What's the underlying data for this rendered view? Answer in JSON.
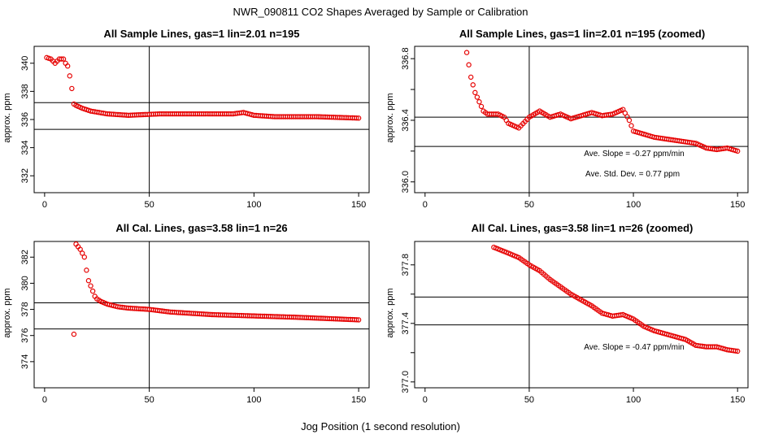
{
  "main_title": "NWR_090811  CO2 Shapes Averaged by Sample or Calibration",
  "x_label": "Jog Position (1 second resolution)",
  "colors": {
    "points": "#e60000",
    "lines": "#000000"
  },
  "chart_data": [
    {
      "type": "scatter",
      "title": "All Sample Lines, gas=1 lin=2.01 n=195",
      "ylabel": "approx. ppm",
      "xlim": [
        -5,
        155
      ],
      "ylim": [
        330.8,
        341.2
      ],
      "xticks": [
        0,
        50,
        100,
        150
      ],
      "yticks": [
        332,
        334,
        336,
        338,
        340
      ],
      "vline": 50,
      "hlines": [
        337.2,
        335.3
      ],
      "annotations": [],
      "series": {
        "kind": "curve",
        "x_start": 1,
        "x_end": 150,
        "knots": [
          [
            1,
            340.4
          ],
          [
            3,
            340.3
          ],
          [
            5,
            340.0
          ],
          [
            7,
            340.3
          ],
          [
            9,
            340.3
          ],
          [
            10,
            340.0
          ],
          [
            11,
            339.8
          ],
          [
            12,
            339.1
          ],
          [
            13,
            338.2
          ],
          [
            14,
            337.1
          ],
          [
            15,
            337.0
          ],
          [
            18,
            336.8
          ],
          [
            22,
            336.6
          ],
          [
            30,
            336.4
          ],
          [
            40,
            336.3
          ],
          [
            55,
            336.4
          ],
          [
            70,
            336.4
          ],
          [
            90,
            336.4
          ],
          [
            95,
            336.5
          ],
          [
            100,
            336.3
          ],
          [
            110,
            336.2
          ],
          [
            130,
            336.2
          ],
          [
            150,
            336.1
          ]
        ]
      }
    },
    {
      "type": "scatter",
      "title": "All Sample Lines, gas=1 lin=2.01 n=195 (zoomed)",
      "ylabel": "approx. ppm",
      "xlim": [
        -5,
        155
      ],
      "ylim": [
        335.93,
        336.88
      ],
      "xticks": [
        0,
        50,
        100,
        150
      ],
      "yticks": [
        336.0,
        336.2,
        336.4,
        336.6,
        336.8
      ],
      "ytick_labels": [
        "336.0",
        "",
        "336.4",
        "",
        "336.8"
      ],
      "vline": 50,
      "hlines": [
        336.42,
        336.23
      ],
      "annotations": [
        "Ave. Slope =  -0.27  ppm/min",
        "Ave. Std. Dev. =  0.77  ppm"
      ],
      "series": {
        "kind": "curve",
        "x_start": 19,
        "x_end": 150,
        "knots": [
          [
            19,
            336.9
          ],
          [
            20,
            336.84
          ],
          [
            22,
            336.68
          ],
          [
            24,
            336.58
          ],
          [
            26,
            336.52
          ],
          [
            28,
            336.46
          ],
          [
            30,
            336.44
          ],
          [
            35,
            336.44
          ],
          [
            38,
            336.42
          ],
          [
            40,
            336.38
          ],
          [
            45,
            336.35
          ],
          [
            50,
            336.42
          ],
          [
            55,
            336.46
          ],
          [
            60,
            336.42
          ],
          [
            65,
            336.44
          ],
          [
            70,
            336.41
          ],
          [
            75,
            336.43
          ],
          [
            80,
            336.45
          ],
          [
            85,
            336.43
          ],
          [
            90,
            336.44
          ],
          [
            95,
            336.47
          ],
          [
            98,
            336.4
          ],
          [
            100,
            336.33
          ],
          [
            105,
            336.31
          ],
          [
            110,
            336.29
          ],
          [
            115,
            336.28
          ],
          [
            120,
            336.27
          ],
          [
            125,
            336.26
          ],
          [
            130,
            336.25
          ],
          [
            135,
            336.22
          ],
          [
            140,
            336.21
          ],
          [
            145,
            336.22
          ],
          [
            150,
            336.2
          ]
        ]
      }
    },
    {
      "type": "scatter",
      "title": "All Cal. Lines, gas=3.58 lin=1 n=26",
      "ylabel": "approx. ppm",
      "xlim": [
        -5,
        155
      ],
      "ylim": [
        372,
        383.2
      ],
      "xticks": [
        0,
        50,
        100,
        150
      ],
      "yticks": [
        374,
        376,
        378,
        380,
        382
      ],
      "vline": 50,
      "hlines": [
        378.5,
        376.5
      ],
      "annotations": [],
      "series": {
        "kind": "curve",
        "x_start": 15,
        "x_end": 150,
        "knots": [
          [
            15,
            383.0
          ],
          [
            17,
            382.6
          ],
          [
            19,
            382.0
          ],
          [
            20,
            381.0
          ],
          [
            21,
            380.2
          ],
          [
            22,
            379.8
          ],
          [
            23,
            379.4
          ],
          [
            24,
            379.0
          ],
          [
            25,
            378.8
          ],
          [
            27,
            378.6
          ],
          [
            30,
            378.4
          ],
          [
            35,
            378.2
          ],
          [
            40,
            378.1
          ],
          [
            50,
            378.0
          ],
          [
            60,
            377.8
          ],
          [
            80,
            377.6
          ],
          [
            100,
            377.5
          ],
          [
            120,
            377.4
          ],
          [
            150,
            377.2
          ]
        ],
        "extra_points": [
          [
            14,
            376.1
          ]
        ]
      }
    },
    {
      "type": "scatter",
      "title": "All Cal. Lines, gas=3.58 lin=1 n=26 (zoomed)",
      "ylabel": "approx. ppm",
      "xlim": [
        -5,
        155
      ],
      "ylim": [
        376.96,
        377.96
      ],
      "xticks": [
        0,
        50,
        100,
        150
      ],
      "yticks": [
        377.0,
        377.2,
        377.4,
        377.6,
        377.8
      ],
      "ytick_labels": [
        "377.0",
        "",
        "377.4",
        "",
        "377.8"
      ],
      "vline": 50,
      "hlines": [
        377.58,
        377.39
      ],
      "annotations": [
        "Ave. Slope =  -0.47  ppm/min"
      ],
      "series": {
        "kind": "curve",
        "x_start": 33,
        "x_end": 150,
        "knots": [
          [
            33,
            377.92
          ],
          [
            40,
            377.88
          ],
          [
            45,
            377.85
          ],
          [
            50,
            377.8
          ],
          [
            55,
            377.76
          ],
          [
            60,
            377.7
          ],
          [
            65,
            377.65
          ],
          [
            70,
            377.6
          ],
          [
            75,
            377.56
          ],
          [
            80,
            377.52
          ],
          [
            85,
            377.47
          ],
          [
            90,
            377.45
          ],
          [
            95,
            377.46
          ],
          [
            100,
            377.43
          ],
          [
            105,
            377.38
          ],
          [
            110,
            377.35
          ],
          [
            115,
            377.33
          ],
          [
            120,
            377.31
          ],
          [
            125,
            377.29
          ],
          [
            130,
            377.25
          ],
          [
            135,
            377.24
          ],
          [
            140,
            377.24
          ],
          [
            145,
            377.22
          ],
          [
            150,
            377.21
          ]
        ]
      }
    }
  ]
}
